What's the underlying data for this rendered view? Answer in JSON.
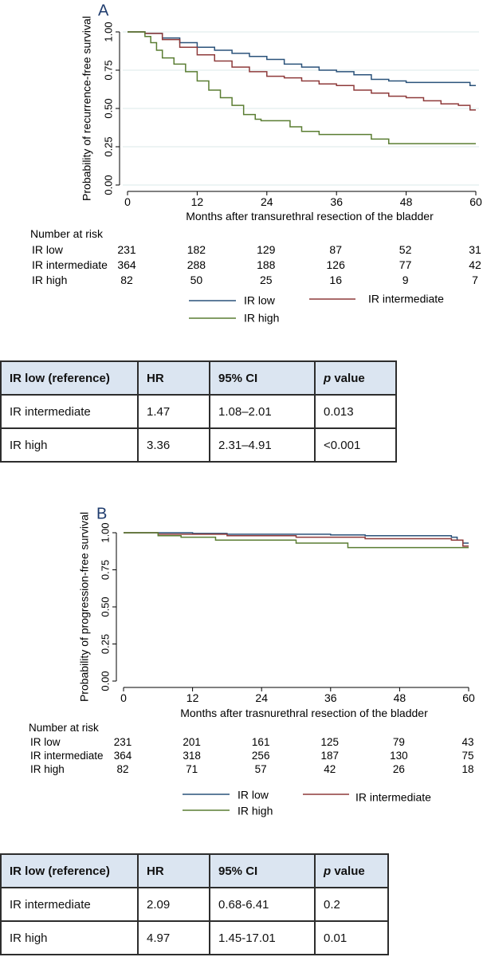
{
  "chart_data": [
    {
      "type": "line",
      "panel_label": "A",
      "ylabel": "Probability of recurrence-free survival",
      "xlabel": "Months after transurethral resection of the bladder",
      "xlim": [
        0,
        60
      ],
      "ylim": [
        0,
        1
      ],
      "x_ticks": [
        "0",
        "12",
        "24",
        "36",
        "48",
        "60"
      ],
      "y_ticks": [
        "0.00",
        "0.25",
        "0.50",
        "0.75",
        "1.00"
      ],
      "y_tick_values": [
        0,
        0.25,
        0.5,
        0.75,
        1.0
      ],
      "grid": "horizontal",
      "series": [
        {
          "name": "IR low",
          "color": "#2a527a",
          "x": [
            0,
            3,
            6,
            9,
            12,
            15,
            18,
            21,
            24,
            27,
            30,
            33,
            36,
            39,
            42,
            45,
            48,
            51,
            54,
            57,
            59,
            60
          ],
          "y": [
            1.0,
            0.99,
            0.96,
            0.93,
            0.9,
            0.88,
            0.86,
            0.84,
            0.82,
            0.79,
            0.77,
            0.75,
            0.74,
            0.72,
            0.69,
            0.68,
            0.67,
            0.67,
            0.67,
            0.67,
            0.65,
            0.65
          ]
        },
        {
          "name": "IR intermediate",
          "color": "#8e3a3a",
          "x": [
            0,
            3,
            6,
            9,
            12,
            15,
            18,
            21,
            24,
            27,
            30,
            33,
            36,
            39,
            42,
            45,
            48,
            51,
            54,
            57,
            59,
            60
          ],
          "y": [
            1.0,
            0.99,
            0.95,
            0.9,
            0.85,
            0.81,
            0.77,
            0.74,
            0.71,
            0.7,
            0.68,
            0.66,
            0.65,
            0.62,
            0.6,
            0.58,
            0.57,
            0.55,
            0.53,
            0.52,
            0.49,
            0.49
          ]
        },
        {
          "name": "IR high",
          "color": "#5a7d32",
          "x": [
            0,
            3,
            4,
            5,
            6,
            8,
            10,
            12,
            14,
            16,
            18,
            20,
            22,
            23,
            24,
            26,
            28,
            30,
            33,
            36,
            39,
            42,
            44,
            45,
            48,
            54,
            60
          ],
          "y": [
            1.0,
            0.97,
            0.93,
            0.88,
            0.83,
            0.79,
            0.74,
            0.68,
            0.62,
            0.57,
            0.52,
            0.46,
            0.43,
            0.42,
            0.42,
            0.42,
            0.38,
            0.35,
            0.33,
            0.33,
            0.33,
            0.3,
            0.3,
            0.27,
            0.27,
            0.27,
            0.27
          ]
        }
      ],
      "at_risk": {
        "title": "Number at risk",
        "rows": [
          {
            "label": "IR low",
            "values": [
              "231",
              "182",
              "129",
              "87",
              "52",
              "31"
            ]
          },
          {
            "label": "IR intermediate",
            "values": [
              "364",
              "288",
              "188",
              "126",
              "77",
              "42"
            ]
          },
          {
            "label": "IR high",
            "values": [
              "82",
              "50",
              "25",
              "16",
              "9",
              "7"
            ]
          }
        ]
      },
      "legend": [
        "IR low",
        "IR intermediate",
        "IR high"
      ]
    },
    {
      "type": "line",
      "panel_label": "B",
      "ylabel": "Probability of progression-free survival",
      "xlabel": "Months after trasnurethral resection of the bladder",
      "xlim": [
        0,
        60
      ],
      "ylim": [
        0,
        1
      ],
      "x_ticks": [
        "0",
        "12",
        "24",
        "36",
        "48",
        "60"
      ],
      "y_ticks": [
        "0.00",
        "0.25",
        "0.50",
        "0.75",
        "1.00"
      ],
      "y_tick_values": [
        0,
        0.25,
        0.5,
        0.75,
        1.0
      ],
      "grid": "none",
      "series": [
        {
          "name": "IR low",
          "color": "#2a527a",
          "x": [
            0,
            6,
            12,
            18,
            24,
            30,
            36,
            42,
            48,
            54,
            57,
            58,
            59,
            60
          ],
          "y": [
            1.0,
            1.0,
            0.995,
            0.99,
            0.99,
            0.99,
            0.985,
            0.98,
            0.98,
            0.98,
            0.97,
            0.95,
            0.93,
            0.93
          ]
        },
        {
          "name": "IR intermediate",
          "color": "#8e3a3a",
          "x": [
            0,
            6,
            12,
            18,
            24,
            30,
            36,
            42,
            48,
            54,
            57,
            59,
            60
          ],
          "y": [
            1.0,
            0.99,
            0.99,
            0.98,
            0.98,
            0.97,
            0.97,
            0.96,
            0.96,
            0.96,
            0.95,
            0.91,
            0.91
          ]
        },
        {
          "name": "IR high",
          "color": "#5a7d32",
          "x": [
            0,
            6,
            10,
            16,
            24,
            30,
            34,
            39,
            45,
            50,
            60
          ],
          "y": [
            1.0,
            0.98,
            0.97,
            0.95,
            0.95,
            0.93,
            0.93,
            0.9,
            0.9,
            0.9,
            0.9
          ]
        }
      ],
      "at_risk": {
        "title": "Number at risk",
        "rows": [
          {
            "label": "IR low",
            "values": [
              "231",
              "201",
              "161",
              "125",
              "79",
              "43"
            ]
          },
          {
            "label": "IR intermediate",
            "values": [
              "364",
              "318",
              "256",
              "187",
              "130",
              "75"
            ]
          },
          {
            "label": "IR high",
            "values": [
              "82",
              "71",
              "57",
              "42",
              "26",
              "18"
            ]
          }
        ]
      },
      "legend": [
        "IR low",
        "IR intermediate",
        "IR high"
      ]
    }
  ],
  "tables": [
    {
      "header": {
        "ref": "IR low (reference)",
        "hr": "HR",
        "ci": "95% CI",
        "p_italic": "p",
        "p_rest": " value"
      },
      "rows": [
        {
          "group": "IR intermediate",
          "hr": "1.47",
          "ci": "1.08–2.01",
          "p": "0.013"
        },
        {
          "group": "IR high",
          "hr": "3.36",
          "ci": "2.31–4.91",
          "p": "<0.001"
        }
      ]
    },
    {
      "header": {
        "ref": "IR low (reference)",
        "hr": "HR",
        "ci": "95% CI",
        "p_italic": "p",
        "p_rest": " value"
      },
      "rows": [
        {
          "group": "IR intermediate",
          "hr": "2.09",
          "ci": "0.68-6.41",
          "p": "0.2"
        },
        {
          "group": "IR high",
          "hr": "4.97",
          "ci": "1.45-17.01",
          "p": "0.01"
        }
      ]
    }
  ]
}
